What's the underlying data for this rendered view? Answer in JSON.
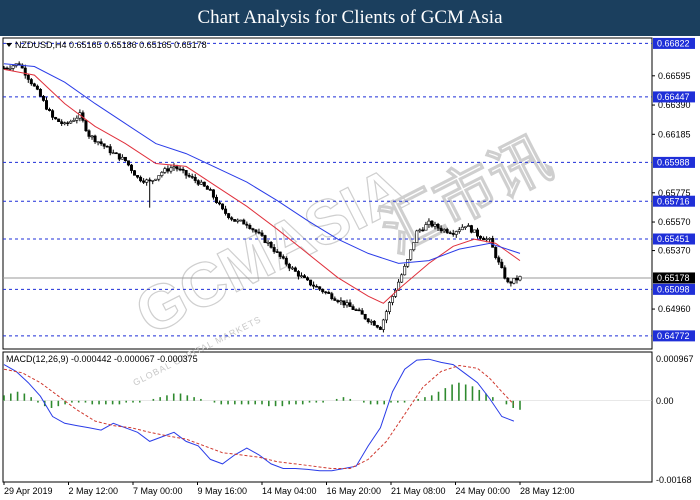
{
  "banner": {
    "title": "Chart Analysis for Clients of GCM Asia"
  },
  "chart_data": [
    {
      "type": "candlestick",
      "symbol": "NZDUSD,H4",
      "ohlc_header": "0.65165 0.65186 0.65165 0.65178",
      "ylim": [
        0.6468,
        0.6686
      ],
      "y_ticks": [
        "0.66822",
        "0.66595",
        "0.66447",
        "0.66390",
        "0.66185",
        "0.65988",
        "0.65775",
        "0.65716",
        "0.65570",
        "0.65451",
        "0.65370",
        "0.65178",
        "0.65098",
        "0.64960",
        "0.64772"
      ],
      "price_labels": [
        {
          "value": 0.66822,
          "label": "0.66822",
          "style": "resistance"
        },
        {
          "value": 0.66447,
          "label": "0.66447",
          "style": "resistance"
        },
        {
          "value": 0.65988,
          "label": "0.65988",
          "style": "resistance"
        },
        {
          "value": 0.65716,
          "label": "0.65716",
          "style": "resistance"
        },
        {
          "value": 0.65451,
          "label": "0.65451",
          "style": "resistance"
        },
        {
          "value": 0.65178,
          "label": "0.65178",
          "style": "current"
        },
        {
          "value": 0.65098,
          "label": "0.65098",
          "style": "support"
        },
        {
          "value": 0.64772,
          "label": "0.64772",
          "style": "support"
        }
      ],
      "x_ticks": [
        "29 Apr 2019",
        "2 May 12:00",
        "7 May 00:00",
        "9 May 16:00",
        "14 May 04:00",
        "16 May 20:00",
        "21 May 08:00",
        "24 May 00:00",
        "28 May 12:00"
      ],
      "close_path": [
        [
          0,
          0.6665
        ],
        [
          5,
          0.6668
        ],
        [
          9,
          0.6655
        ],
        [
          12,
          0.6645
        ],
        [
          16,
          0.663
        ],
        [
          20,
          0.6625
        ],
        [
          25,
          0.6632
        ],
        [
          28,
          0.6618
        ],
        [
          32,
          0.6612
        ],
        [
          36,
          0.6605
        ],
        [
          40,
          0.66
        ],
        [
          44,
          0.6588
        ],
        [
          48,
          0.6585
        ],
        [
          52,
          0.6592
        ],
        [
          56,
          0.6596
        ],
        [
          60,
          0.659
        ],
        [
          64,
          0.6585
        ],
        [
          68,
          0.6578
        ],
        [
          72,
          0.6565
        ],
        [
          76,
          0.6558
        ],
        [
          80,
          0.6556
        ],
        [
          84,
          0.6548
        ],
        [
          88,
          0.654
        ],
        [
          92,
          0.653
        ],
        [
          96,
          0.6522
        ],
        [
          100,
          0.6515
        ],
        [
          104,
          0.651
        ],
        [
          108,
          0.6505
        ],
        [
          112,
          0.65
        ],
        [
          116,
          0.6495
        ],
        [
          119,
          0.649
        ],
        [
          122,
          0.6486
        ],
        [
          124,
          0.6483
        ],
        [
          127,
          0.65
        ],
        [
          130,
          0.6515
        ],
        [
          133,
          0.653
        ],
        [
          136,
          0.655
        ],
        [
          140,
          0.6556
        ],
        [
          144,
          0.6552
        ],
        [
          148,
          0.655
        ],
        [
          152,
          0.6555
        ],
        [
          156,
          0.6548
        ],
        [
          160,
          0.6544
        ],
        [
          163,
          0.6528
        ],
        [
          166,
          0.6514
        ],
        [
          170,
          0.6518
        ]
      ],
      "series": [
        {
          "name": "MA fast",
          "color": "#e0303c",
          "values": [
            [
              0,
              0.6664
            ],
            [
              10,
              0.666
            ],
            [
              20,
              0.664
            ],
            [
              30,
              0.6624
            ],
            [
              40,
              0.6612
            ],
            [
              50,
              0.6598
            ],
            [
              60,
              0.6596
            ],
            [
              70,
              0.6582
            ],
            [
              80,
              0.6568
            ],
            [
              90,
              0.6552
            ],
            [
              100,
              0.6535
            ],
            [
              110,
              0.6518
            ],
            [
              120,
              0.6505
            ],
            [
              125,
              0.65
            ],
            [
              130,
              0.651
            ],
            [
              140,
              0.6528
            ],
            [
              148,
              0.654
            ],
            [
              155,
              0.6545
            ],
            [
              162,
              0.6542
            ],
            [
              170,
              0.653
            ]
          ]
        },
        {
          "name": "MA slow",
          "color": "#2a3ce8",
          "values": [
            [
              0,
              0.6668
            ],
            [
              10,
              0.6666
            ],
            [
              20,
              0.6655
            ],
            [
              30,
              0.664
            ],
            [
              40,
              0.6626
            ],
            [
              50,
              0.6612
            ],
            [
              60,
              0.6605
            ],
            [
              70,
              0.6595
            ],
            [
              80,
              0.6585
            ],
            [
              90,
              0.6572
            ],
            [
              100,
              0.6558
            ],
            [
              110,
              0.6545
            ],
            [
              120,
              0.6535
            ],
            [
              130,
              0.6528
            ],
            [
              140,
              0.653
            ],
            [
              150,
              0.6538
            ],
            [
              160,
              0.6542
            ],
            [
              170,
              0.6535
            ]
          ]
        }
      ]
    },
    {
      "type": "macd",
      "label": "MACD(12,26,9) -0.000442 -0.000067 -0.000375",
      "ylim": [
        -0.0018,
        0.00108
      ],
      "y_ticks": [
        "0.000967",
        "0.00",
        "-0.00168"
      ],
      "histogram": [
        3,
        4,
        5,
        4,
        2,
        -1,
        -3,
        -4,
        -3,
        -2,
        -1,
        -1,
        -1,
        -2,
        -2,
        -2,
        -2,
        -2,
        -1,
        -1,
        -1,
        0,
        1,
        2,
        3,
        4,
        4,
        3,
        2,
        1,
        0,
        -1,
        -2,
        -2,
        -2,
        -2,
        -2,
        -2,
        -2,
        -3,
        -3,
        -3,
        -2,
        -2,
        -2,
        -1,
        -1,
        -1,
        0,
        1,
        2,
        1,
        0,
        -1,
        -2,
        -2,
        -2,
        -1,
        -1,
        -1,
        0,
        1,
        2,
        3,
        5,
        7,
        9,
        10,
        9,
        8,
        6,
        4,
        2,
        0,
        -2,
        -4,
        -5
      ],
      "series": [
        {
          "name": "MACD",
          "color": "#2a3ce8",
          "values": [
            [
              0,
              0.0008
            ],
            [
              4,
              0.00065
            ],
            [
              8,
              0.0004
            ],
            [
              12,
              0.0001
            ],
            [
              16,
              -0.00035
            ],
            [
              20,
              -0.0005
            ],
            [
              24,
              -0.00055
            ],
            [
              28,
              -0.0006
            ],
            [
              32,
              -0.00065
            ],
            [
              36,
              -0.0005
            ],
            [
              40,
              -0.0006
            ],
            [
              44,
              -0.0007
            ],
            [
              48,
              -0.0009
            ],
            [
              52,
              -0.0008
            ],
            [
              56,
              -0.0007
            ],
            [
              60,
              -0.0009
            ],
            [
              64,
              -0.001
            ],
            [
              68,
              -0.0013
            ],
            [
              72,
              -0.0014
            ],
            [
              76,
              -0.0012
            ],
            [
              80,
              -0.00105
            ],
            [
              84,
              -0.0012
            ],
            [
              88,
              -0.0014
            ],
            [
              92,
              -0.0015
            ],
            [
              96,
              -0.0015
            ],
            [
              100,
              -0.00152
            ],
            [
              104,
              -0.00155
            ],
            [
              108,
              -0.00155
            ],
            [
              112,
              -0.0015
            ],
            [
              116,
              -0.00145
            ],
            [
              120,
              -0.001
            ],
            [
              124,
              -0.0006
            ],
            [
              128,
              0.0002
            ],
            [
              132,
              0.0007
            ],
            [
              136,
              0.0009
            ],
            [
              140,
              0.00092
            ],
            [
              144,
              0.00085
            ],
            [
              148,
              0.0008
            ],
            [
              152,
              0.0006
            ],
            [
              156,
              0.0004
            ],
            [
              160,
              5e-05
            ],
            [
              164,
              -0.00035
            ],
            [
              168,
              -0.00045
            ]
          ]
        },
        {
          "name": "Signal",
          "color": "#d03a30",
          "values": [
            [
              0,
              0.0007
            ],
            [
              6,
              0.00062
            ],
            [
              12,
              0.0004
            ],
            [
              18,
              0.0001
            ],
            [
              24,
              -0.0002
            ],
            [
              30,
              -0.00045
            ],
            [
              36,
              -0.00055
            ],
            [
              42,
              -0.0006
            ],
            [
              48,
              -0.0007
            ],
            [
              54,
              -0.00078
            ],
            [
              60,
              -0.00085
            ],
            [
              66,
              -0.001
            ],
            [
              72,
              -0.00115
            ],
            [
              78,
              -0.0012
            ],
            [
              84,
              -0.00125
            ],
            [
              90,
              -0.00135
            ],
            [
              96,
              -0.0014
            ],
            [
              102,
              -0.00145
            ],
            [
              108,
              -0.0015
            ],
            [
              114,
              -0.0015
            ],
            [
              120,
              -0.0013
            ],
            [
              126,
              -0.0009
            ],
            [
              132,
              -0.0003
            ],
            [
              138,
              0.0003
            ],
            [
              144,
              0.00065
            ],
            [
              150,
              0.00078
            ],
            [
              156,
              0.00072
            ],
            [
              160,
              0.0005
            ],
            [
              164,
              0.0002
            ],
            [
              168,
              -8e-05
            ]
          ]
        }
      ]
    }
  ],
  "watermark": {
    "brand": "GCMASIA",
    "chinese": "汇市讯",
    "line": "GLOBAL CAPITAL MARKETS"
  }
}
